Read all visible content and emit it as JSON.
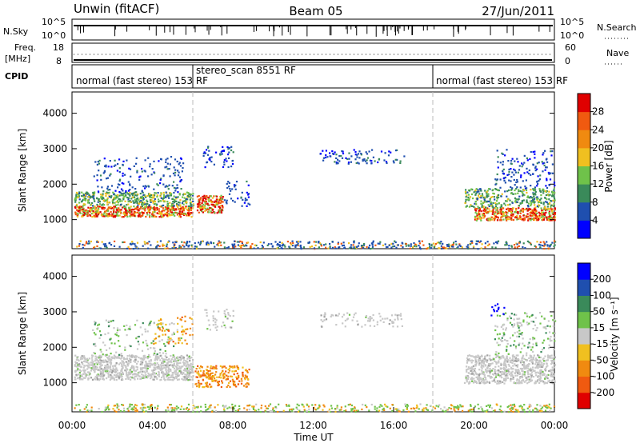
{
  "header": {
    "station": "Unwin (fitACF)",
    "beam": "Beam 05",
    "date": "27/Jun/2011"
  },
  "colors": {
    "power_scale": [
      "#0000ff",
      "#1f4faf",
      "#3a8a5a",
      "#6fc24a",
      "#f0c020",
      "#f08a10",
      "#f05a10",
      "#e00000"
    ],
    "velocity_scale": [
      "#e00000",
      "#f05a10",
      "#f08a10",
      "#f0c020",
      "#c8c8c8",
      "#6fc24a",
      "#3a8a5a",
      "#1f4faf",
      "#0000ff"
    ],
    "ground_scatter": "#c8c8c8"
  },
  "chart_data": [
    {
      "type": "line",
      "title": "",
      "left_label": "N.Sky",
      "right_label": "N.Search",
      "left_ticks": [
        "10^5",
        "10^0"
      ],
      "right_ticks": [
        "10^5",
        "10^0"
      ]
    },
    {
      "type": "line",
      "left_label_line1": "Freq.",
      "left_label_line2": "[MHz]",
      "right_label": "Nave",
      "left_ticks": [
        "18",
        "8"
      ],
      "right_ticks": [
        "60",
        "0"
      ]
    },
    {
      "type": "table",
      "label": "CPID",
      "segments": [
        {
          "text": "normal (fast stereo) 153 RF",
          "start_hour": 0.0
        },
        {
          "text": "stereo_scan 8551 RF",
          "start_hour": 6.0
        },
        {
          "text": "normal (fast stereo) 153 RF",
          "start_hour": 18.0
        }
      ]
    },
    {
      "type": "heatmap",
      "quantity": "Power",
      "ylabel": "Slant Range [km]",
      "yticks": [
        1000,
        2000,
        3000,
        4000
      ],
      "ylim": [
        180,
        4600
      ],
      "colorbar_label": "Power [dB]",
      "colorbar_ticks": [
        "4",
        "8",
        "12",
        "16",
        "20",
        "24",
        "28"
      ],
      "xlim_hours": [
        0,
        24
      ]
    },
    {
      "type": "heatmap",
      "quantity": "Velocity",
      "ylabel": "Slant Range [km]",
      "yticks": [
        1000,
        2000,
        3000,
        4000
      ],
      "ylim": [
        180,
        4600
      ],
      "colorbar_label": "Velocity [m s⁻¹]",
      "colorbar_ticks": [
        "200",
        "100",
        "50",
        "15",
        "-15",
        "-50",
        "-100",
        "-200"
      ],
      "xlabel": "Time UT",
      "xticks": [
        "00:00",
        "04:00",
        "08:00",
        "12:00",
        "16:00",
        "20:00",
        "00:00"
      ],
      "xlim_hours": [
        0,
        24
      ]
    }
  ]
}
